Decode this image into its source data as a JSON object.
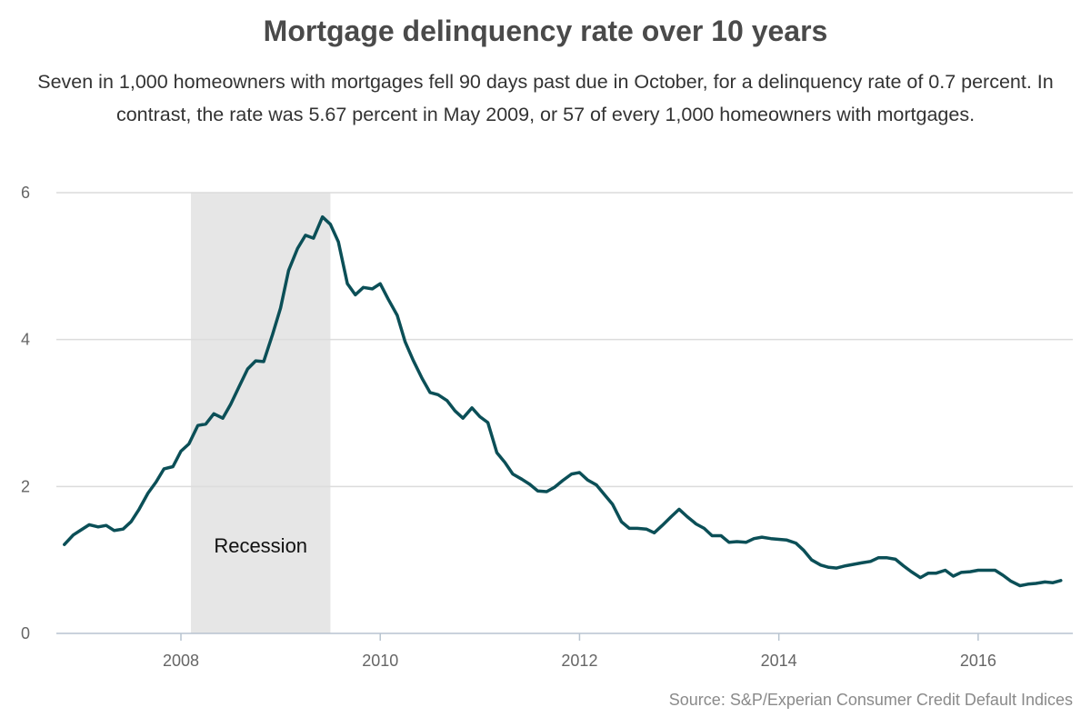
{
  "chart_data": {
    "type": "line",
    "title": "Mortgage delinquency rate over 10 years",
    "subtitle": "Seven in 1,000 homeowners with mortgages fell 90 days past due in October, for a delinquency rate of 0.7 percent. In contrast, the rate was 5.67 percent in May 2009, or 57 of every 1,000 homeowners with mortgages.",
    "source": "Source: S&P/Experian Consumer Credit Default Indices",
    "xlim": [
      2006.75,
      2016.95
    ],
    "ylim": [
      0,
      6
    ],
    "x_ticks": [
      2008,
      2010,
      2012,
      2014,
      2016
    ],
    "x_tick_labels": [
      "2008",
      "2010",
      "2012",
      "2014",
      "2016"
    ],
    "y_ticks": [
      0,
      2,
      4,
      6
    ],
    "y_tick_labels": [
      "0",
      "2",
      "4",
      "6"
    ],
    "grid": true,
    "shaded_regions": [
      {
        "label": "Recession",
        "x_start": 2008.1,
        "x_end": 2009.5,
        "color": "#e6e6e6"
      }
    ],
    "series": [
      {
        "color": "#0b4f57",
        "x": [
          2006.83,
          2006.92,
          2007.0,
          2007.08,
          2007.17,
          2007.25,
          2007.33,
          2007.42,
          2007.5,
          2007.58,
          2007.67,
          2007.75,
          2007.83,
          2007.92,
          2008.0,
          2008.08,
          2008.17,
          2008.25,
          2008.33,
          2008.42,
          2008.5,
          2008.58,
          2008.67,
          2008.75,
          2008.83,
          2008.92,
          2009.0,
          2009.08,
          2009.17,
          2009.25,
          2009.33,
          2009.42,
          2009.5,
          2009.58,
          2009.67,
          2009.75,
          2009.83,
          2009.92,
          2010.0,
          2010.08,
          2010.17,
          2010.25,
          2010.33,
          2010.42,
          2010.5,
          2010.58,
          2010.67,
          2010.75,
          2010.83,
          2010.92,
          2011.0,
          2011.08,
          2011.17,
          2011.25,
          2011.33,
          2011.42,
          2011.5,
          2011.58,
          2011.67,
          2011.75,
          2011.83,
          2011.92,
          2012.0,
          2012.08,
          2012.17,
          2012.25,
          2012.33,
          2012.42,
          2012.5,
          2012.58,
          2012.67,
          2012.75,
          2012.83,
          2012.92,
          2013.0,
          2013.08,
          2013.17,
          2013.25,
          2013.33,
          2013.42,
          2013.5,
          2013.58,
          2013.67,
          2013.75,
          2013.83,
          2013.92,
          2014.0,
          2014.08,
          2014.17,
          2014.25,
          2014.33,
          2014.42,
          2014.5,
          2014.58,
          2014.67,
          2014.75,
          2014.83,
          2014.92,
          2015.0,
          2015.08,
          2015.17,
          2015.25,
          2015.33,
          2015.42,
          2015.5,
          2015.58,
          2015.67,
          2015.75,
          2015.83,
          2015.92,
          2016.0,
          2016.08,
          2016.17,
          2016.25,
          2016.33,
          2016.42,
          2016.5,
          2016.58,
          2016.67,
          2016.75,
          2016.83
        ],
        "y": [
          1.21,
          1.34,
          1.41,
          1.48,
          1.45,
          1.47,
          1.4,
          1.42,
          1.52,
          1.69,
          1.91,
          2.06,
          2.24,
          2.27,
          2.48,
          2.58,
          2.83,
          2.85,
          2.99,
          2.93,
          3.12,
          3.35,
          3.6,
          3.71,
          3.7,
          4.07,
          4.43,
          4.94,
          5.24,
          5.42,
          5.38,
          5.67,
          5.57,
          5.33,
          4.76,
          4.61,
          4.71,
          4.69,
          4.76,
          4.55,
          4.33,
          3.97,
          3.72,
          3.47,
          3.28,
          3.25,
          3.17,
          3.03,
          2.93,
          3.07,
          2.95,
          2.87,
          2.46,
          2.33,
          2.17,
          2.1,
          2.03,
          1.94,
          1.93,
          1.99,
          2.08,
          2.17,
          2.19,
          2.09,
          2.02,
          1.89,
          1.76,
          1.52,
          1.43,
          1.43,
          1.42,
          1.37,
          1.47,
          1.59,
          1.69,
          1.59,
          1.49,
          1.43,
          1.33,
          1.33,
          1.24,
          1.25,
          1.24,
          1.29,
          1.31,
          1.29,
          1.28,
          1.27,
          1.23,
          1.13,
          1.0,
          0.93,
          0.9,
          0.89,
          0.92,
          0.94,
          0.96,
          0.98,
          1.03,
          1.03,
          1.01,
          0.92,
          0.84,
          0.76,
          0.82,
          0.82,
          0.86,
          0.78,
          0.83,
          0.84,
          0.86,
          0.86,
          0.86,
          0.79,
          0.71,
          0.65,
          0.67,
          0.68,
          0.7,
          0.69,
          0.72
        ]
      }
    ]
  }
}
